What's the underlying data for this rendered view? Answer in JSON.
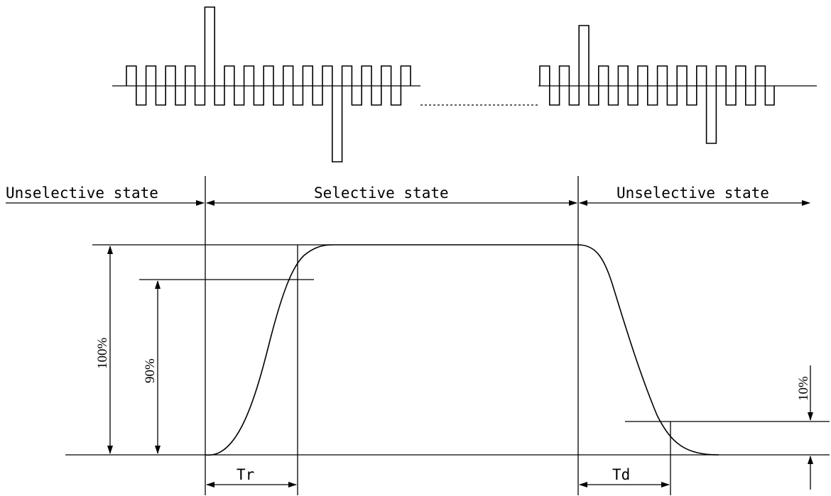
{
  "labels": {
    "unselective_left": "Unselective state",
    "selective": "Selective state",
    "unselective_right": "Unselective state",
    "pct_100": "100%",
    "pct_90": "90%",
    "pct_10": "10%",
    "tr": "Tr",
    "td": "Td"
  },
  "colors": {
    "stroke": "#000000",
    "background": "#ffffff"
  }
}
